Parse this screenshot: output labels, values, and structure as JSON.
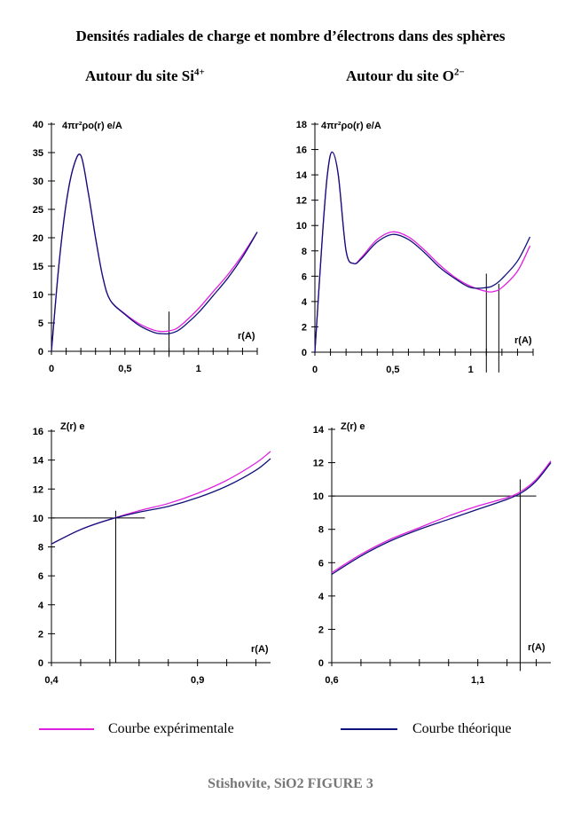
{
  "title": "Densités radiales de charge et nombre d’électrons dans des sphères",
  "columns": {
    "si": {
      "label": "Autour du site Si",
      "superscript": "4+"
    },
    "o": {
      "label": "Autour du site O",
      "superscript": "2−"
    }
  },
  "legend": {
    "experimental": {
      "label": "Courbe expérimentale",
      "color": "#e020e0"
    },
    "theoretical": {
      "label": "Courbe théorique",
      "color": "#10107a"
    }
  },
  "footer": "Stishovite, SiO2  FIGURE 3",
  "chart_data": [
    {
      "type": "line",
      "ylabel": "4πr²ρo(r) e/A",
      "xlabel": "r(A)",
      "xlim": [
        0,
        1.4
      ],
      "ylim": [
        0,
        40
      ],
      "xticks": [
        0,
        0.5,
        1
      ],
      "xtick_labels": [
        "0",
        "0,5",
        "1"
      ],
      "yticks": [
        0,
        5,
        10,
        15,
        20,
        25,
        30,
        35,
        40
      ],
      "minor_xtick_step": 0.1,
      "markers": [
        {
          "x": 0.8,
          "y_from": -1,
          "y_to": 7
        }
      ],
      "series": [
        {
          "key": "experimental",
          "color": "#e020e0",
          "x": [
            0,
            0.05,
            0.1,
            0.15,
            0.2,
            0.25,
            0.3,
            0.35,
            0.4,
            0.5,
            0.6,
            0.7,
            0.75,
            0.8,
            0.85,
            0.9,
            1.0,
            1.1,
            1.2,
            1.3,
            1.4
          ],
          "y": [
            0,
            15,
            26,
            32.5,
            34.5,
            28,
            20,
            13,
            9,
            6.6,
            4.8,
            3.7,
            3.5,
            3.6,
            4.0,
            5.0,
            7.5,
            10.5,
            13.5,
            17,
            21
          ]
        },
        {
          "key": "theoretical",
          "color": "#10107a",
          "x": [
            0,
            0.05,
            0.1,
            0.15,
            0.2,
            0.25,
            0.3,
            0.35,
            0.4,
            0.5,
            0.6,
            0.7,
            0.75,
            0.8,
            0.85,
            0.9,
            1.0,
            1.1,
            1.2,
            1.3,
            1.4
          ],
          "y": [
            0,
            15,
            26,
            32.5,
            34.5,
            28,
            20,
            13,
            9,
            6.5,
            4.5,
            3.3,
            3.1,
            3.1,
            3.5,
            4.4,
            6.8,
            9.8,
            12.9,
            16.6,
            21
          ]
        }
      ]
    },
    {
      "type": "line",
      "ylabel": "4πr²ρo(r) e/A",
      "xlabel": "r(A)",
      "xlim": [
        0,
        1.4
      ],
      "ylim": [
        0,
        18
      ],
      "xticks": [
        0,
        0.5,
        1
      ],
      "xtick_labels": [
        "0",
        "0,5",
        "1"
      ],
      "yticks": [
        0,
        2,
        4,
        6,
        8,
        10,
        12,
        14,
        16,
        18
      ],
      "minor_xtick_step": 0.1,
      "markers": [
        {
          "x": 1.1,
          "y_from": -1.6,
          "y_to": 6.2
        },
        {
          "x": 1.18,
          "y_from": -1.6,
          "y_to": 5.4
        }
      ],
      "series": [
        {
          "key": "experimental",
          "color": "#e020e0",
          "x": [
            0,
            0.05,
            0.08,
            0.11,
            0.15,
            0.2,
            0.25,
            0.3,
            0.4,
            0.5,
            0.6,
            0.7,
            0.8,
            0.9,
            1.0,
            1.1,
            1.15,
            1.2,
            1.3,
            1.38
          ],
          "y": [
            0,
            9.5,
            14,
            15.8,
            14,
            8.0,
            7.0,
            7.5,
            8.9,
            9.5,
            9.1,
            8.1,
            6.9,
            5.9,
            5.2,
            4.8,
            4.8,
            5.1,
            6.4,
            8.4
          ]
        },
        {
          "key": "theoretical",
          "color": "#10107a",
          "x": [
            0,
            0.05,
            0.08,
            0.11,
            0.15,
            0.2,
            0.25,
            0.3,
            0.4,
            0.5,
            0.6,
            0.7,
            0.8,
            0.9,
            1.0,
            1.1,
            1.15,
            1.2,
            1.3,
            1.38
          ],
          "y": [
            0,
            9.5,
            14,
            15.8,
            14,
            8.0,
            7.0,
            7.4,
            8.7,
            9.3,
            8.9,
            7.9,
            6.7,
            5.8,
            5.1,
            5.1,
            5.3,
            5.8,
            7.2,
            9.1
          ]
        }
      ]
    },
    {
      "type": "line",
      "ylabel": "Z(r) e",
      "xlabel": "r(A)",
      "xlim": [
        0.4,
        1.15
      ],
      "ylim": [
        0,
        16
      ],
      "xticks": [
        0.4,
        0.9
      ],
      "xtick_labels": [
        "0,4",
        "0,9"
      ],
      "yticks": [
        0,
        2,
        4,
        6,
        8,
        10,
        12,
        14,
        16
      ],
      "minor_xtick_step": 0.1,
      "markers": [
        {
          "x": 0.62,
          "y_from": 0,
          "y_to": 10.5
        }
      ],
      "hmarker": {
        "y": 10,
        "x_from": 0.4,
        "x_to": 0.72
      },
      "series": [
        {
          "key": "experimental",
          "color": "#e020e0",
          "x": [
            0.4,
            0.5,
            0.6,
            0.7,
            0.8,
            0.9,
            1.0,
            1.1,
            1.15
          ],
          "y": [
            8.2,
            9.2,
            9.9,
            10.5,
            11.0,
            11.7,
            12.6,
            13.8,
            14.6
          ]
        },
        {
          "key": "theoretical",
          "color": "#10107a",
          "x": [
            0.4,
            0.5,
            0.6,
            0.7,
            0.8,
            0.9,
            1.0,
            1.1,
            1.15
          ],
          "y": [
            8.2,
            9.2,
            9.9,
            10.4,
            10.8,
            11.4,
            12.2,
            13.3,
            14.1
          ]
        }
      ]
    },
    {
      "type": "line",
      "ylabel": "Z(r) e",
      "xlabel": "r(A)",
      "xlim": [
        0.6,
        1.35
      ],
      "ylim": [
        0,
        14
      ],
      "xticks": [
        0.6,
        1.1
      ],
      "xtick_labels": [
        "0,6",
        "1,1"
      ],
      "yticks": [
        0,
        2,
        4,
        6,
        8,
        10,
        12,
        14
      ],
      "minor_xtick_step": 0.1,
      "markers": [
        {
          "x": 1.245,
          "y_from": -0.5,
          "y_to": 11
        }
      ],
      "hmarker": {
        "y": 10,
        "x_from": 0.6,
        "x_to": 1.3
      },
      "series": [
        {
          "key": "experimental",
          "color": "#e020e0",
          "x": [
            0.6,
            0.7,
            0.8,
            0.9,
            1.0,
            1.1,
            1.2,
            1.25,
            1.3,
            1.35
          ],
          "y": [
            5.4,
            6.5,
            7.4,
            8.1,
            8.8,
            9.4,
            9.9,
            10.3,
            11.0,
            12.1
          ]
        },
        {
          "key": "theoretical",
          "color": "#10107a",
          "x": [
            0.6,
            0.7,
            0.8,
            0.9,
            1.0,
            1.1,
            1.2,
            1.25,
            1.3,
            1.35
          ],
          "y": [
            5.3,
            6.4,
            7.3,
            8.0,
            8.6,
            9.2,
            9.8,
            10.2,
            10.9,
            12.0
          ]
        }
      ]
    }
  ]
}
